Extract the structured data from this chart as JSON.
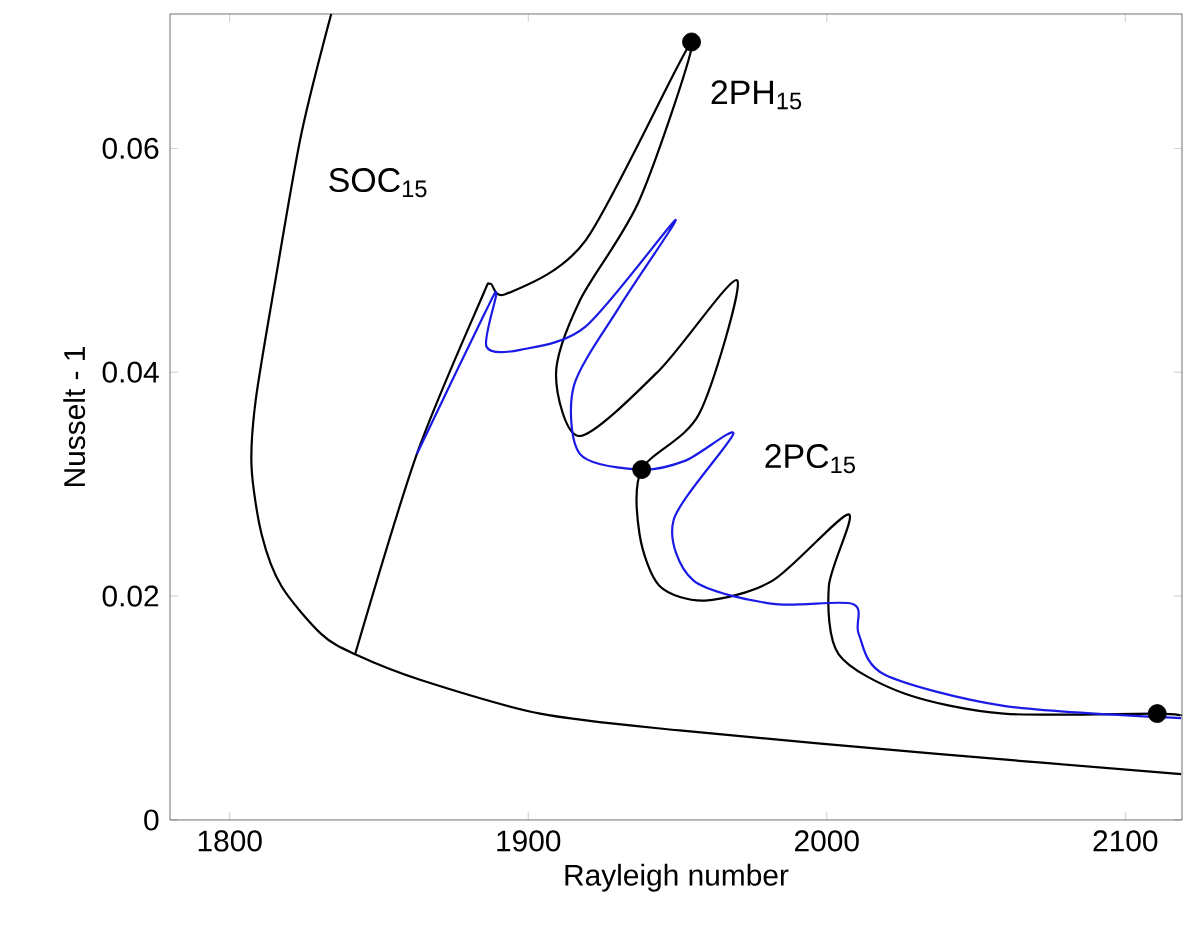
{
  "chart_data": {
    "type": "line",
    "xlabel": "Rayleigh number",
    "ylabel": "Nusselt - 1",
    "xlim": [
      1780,
      2119
    ],
    "ylim": [
      0,
      0.072
    ],
    "xticks": [
      1800,
      1900,
      2000,
      2100
    ],
    "yticks": [
      0,
      0.02,
      0.04,
      0.06
    ],
    "grid": false,
    "legend": false,
    "line_style": "solid",
    "series": [
      {
        "name": "SOC$_{15}$",
        "color": "#000000",
        "marker": "none",
        "x": [
          1834,
          1824,
          1815.3,
          1808.7,
          1807.3,
          1810.7,
          1817.3,
          1830.7,
          1842,
          1864,
          1904,
          1950.7,
          2037,
          2118.7
        ],
        "values": [
          0.072,
          0.0613,
          0.0482,
          0.0375,
          0.0316,
          0.0255,
          0.0209,
          0.0166,
          0.0148,
          0.0125,
          0.0095,
          0.008,
          0.0059,
          0.0041
        ]
      },
      {
        "name": "2PH$_{15}$",
        "color": "#000000",
        "marker": "none",
        "x": [
          1842,
          1862.7,
          1884,
          1887.3,
          1892.7,
          1919.3,
          1954.7,
          1937.3,
          1917.3,
          1909.3,
          1917.3,
          1944,
          1970,
          1957.3,
          1938,
          1937.3,
          1944,
          1959.3,
          1982,
          2007.3,
          2000.7,
          2004,
          2026,
          2059.3,
          2110.7,
          2118.7
        ],
        "values": [
          0.0148,
          0.0327,
          0.0464,
          0.0479,
          0.047,
          0.0518,
          0.0695,
          0.0554,
          0.0464,
          0.0398,
          0.0343,
          0.0402,
          0.0482,
          0.0363,
          0.0313,
          0.0255,
          0.0209,
          0.0196,
          0.0214,
          0.0273,
          0.0209,
          0.0148,
          0.0113,
          0.0095,
          0.0095,
          0.0093
        ]
      },
      {
        "name": "2PC$_{15}$",
        "color": "#1a1ae6",
        "marker": "none",
        "x": [
          1862.7,
          1885.3,
          1889.3,
          1886,
          1897.3,
          1919.3,
          1949.3,
          1930.7,
          1915.3,
          1917.3,
          1937.3,
          1952.7,
          1968.7,
          1948.7,
          1955.3,
          1982,
          2008.7,
          2010.7,
          2019.3,
          2059.3,
          2110.7,
          2118.7
        ],
        "values": [
          0.0327,
          0.0452,
          0.047,
          0.0423,
          0.042,
          0.0441,
          0.0536,
          0.0459,
          0.0388,
          0.0327,
          0.0313,
          0.0321,
          0.0345,
          0.0268,
          0.0214,
          0.0193,
          0.0193,
          0.0166,
          0.013,
          0.0102,
          null,
          0.0091
        ]
      },
      {
        "type": "scatter",
        "color": "#000000",
        "marker": "circle",
        "x": [
          1954.7,
          1938,
          2110.7
        ],
        "values": [
          0.0695,
          0.0313,
          0.0095
        ]
      }
    ]
  }
}
